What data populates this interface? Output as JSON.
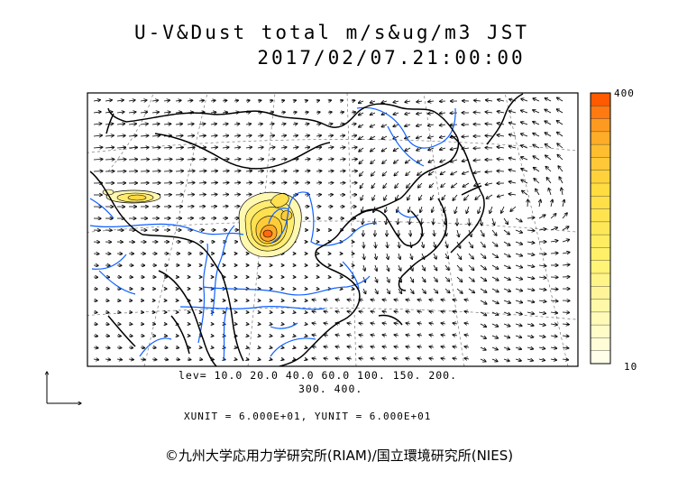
{
  "title": {
    "line1": "U-V&Dust total m/s&ug/m3 JST",
    "line2": "2017/02/07.21:00:00"
  },
  "contour_levels": {
    "line1": "lev= 10.0 20.0 40.0 60.0 100. 150. 200.",
    "line2": "300. 400."
  },
  "units": {
    "text": "XUNIT = 6.000E+01, YUNIT = 6.000E+01"
  },
  "colorbar": {
    "max_label": "400",
    "min_label": "10",
    "colors": [
      "#ff5a00",
      "#ff7a10",
      "#ff9a20",
      "#ffac28",
      "#ffbe30",
      "#ffc838",
      "#ffd23c",
      "#ffdc40",
      "#ffe048",
      "#ffe450",
      "#ffe858",
      "#ffec60",
      "#fff068",
      "#fff478",
      "#fff488",
      "#fff498",
      "#fff8a8",
      "#fffab8",
      "#fffcc8",
      "#fffdd8",
      "#fffee8"
    ]
  },
  "copyright": "©九州大学応用力学研究所(RIAM)/国立環境研究所(NIES)",
  "legend": {
    "vector_key": "reference-vector-axes"
  }
}
